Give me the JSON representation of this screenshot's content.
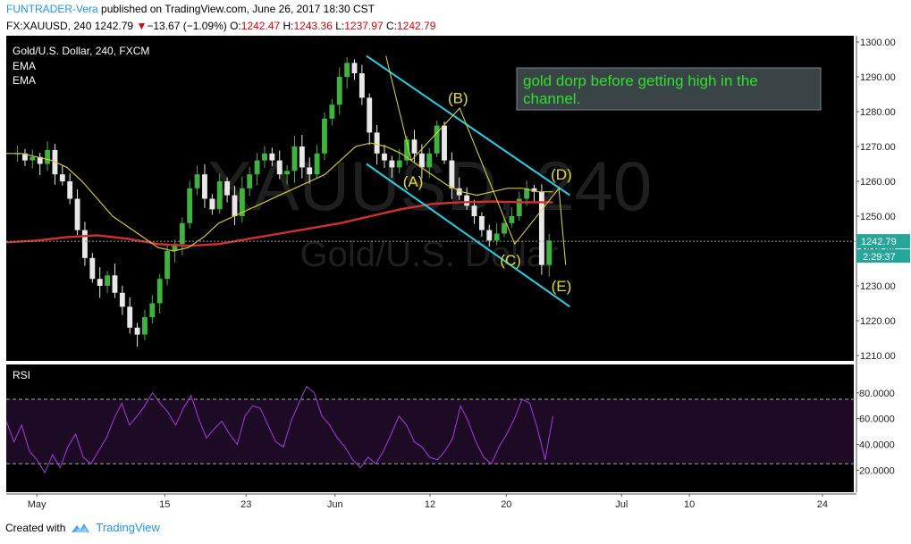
{
  "header": {
    "author": "FUNTRADER-Vera",
    "published": " published on TradingView.com, June 26, 2017 18:30 CST",
    "symbol": "FX:XAUUSD, 240",
    "last": "1242.79",
    "change_arrow": "▼",
    "change": "−13.67 (−1.09%)",
    "o_label": "O:",
    "o": "1242.47",
    "h_label": "H:",
    "h": "1243.36",
    "l_label": "L:",
    "l": "1237.97",
    "c_label": "C:",
    "c": "1242.79"
  },
  "footer": {
    "created_with": "Created with",
    "brand": "TradingView"
  },
  "colors": {
    "pane_bg": "#000000",
    "rsi_bg": "#1d0a24",
    "up": "#3fb23f",
    "down": "#e8e8e8",
    "ema_fast": "#d6c531",
    "ema_slow": "#d42f2f",
    "channel": "#21d0e6",
    "wave": "#e3dc36",
    "rsi_line": "#a53be0",
    "note_text": "#2ee02e",
    "note_bg": "#3a4446"
  },
  "chart_data": {
    "type": "candlestick",
    "title": "Gold/U.S. Dollar, 240, FXCM",
    "indicators": [
      "EMA",
      "EMA"
    ],
    "watermark": [
      "XAUUSD, 240",
      "Gold/U.S. Dollar"
    ],
    "price_axis": {
      "ticks": [
        "1300.00",
        "1290.00",
        "1280.00",
        "1270.00",
        "1260.00",
        "1250.00",
        "1240.00",
        "1230.00",
        "1220.00",
        "1210.00"
      ],
      "ylim": [
        1210,
        1300
      ]
    },
    "last_price_label": "1242.79",
    "countdown_label": "2:29:37",
    "time_axis": [
      "May",
      "15",
      "23",
      "Jun",
      "12",
      "20",
      "Jul",
      "10",
      "24"
    ],
    "close_path": [
      1268,
      1268,
      1266,
      1267,
      1265,
      1269,
      1262,
      1260,
      1255,
      1246,
      1238,
      1232,
      1230,
      1233,
      1228,
      1224,
      1218,
      1216,
      1221,
      1225,
      1232,
      1240,
      1242,
      1248,
      1258,
      1262,
      1255,
      1252,
      1260,
      1256,
      1250,
      1258,
      1262,
      1266,
      1268,
      1266,
      1262,
      1263,
      1270,
      1264,
      1262,
      1268,
      1278,
      1282,
      1290,
      1294,
      1291,
      1284,
      1274,
      1268,
      1266,
      1264,
      1266,
      1272,
      1268,
      1264,
      1268,
      1276,
      1266,
      1258,
      1256,
      1253,
      1250,
      1246,
      1243,
      1245,
      1248,
      1250,
      1255,
      1258,
      1257,
      1236,
      1243
    ],
    "ema_fast_path": [
      1268,
      1268,
      1267,
      1266,
      1264,
      1260,
      1255,
      1250,
      1247,
      1244,
      1241,
      1240,
      1241,
      1244,
      1248,
      1250,
      1252,
      1254,
      1256,
      1258,
      1260,
      1262,
      1266,
      1270,
      1271,
      1270,
      1268,
      1265,
      1262,
      1259,
      1257,
      1256,
      1257,
      1258,
      1258,
      1257,
      1257
    ],
    "ema_slow_path": [
      1242.5,
      1243,
      1244,
      1244.5,
      1243.5,
      1242,
      1241.5,
      1242,
      1243.5,
      1245,
      1246.5,
      1248,
      1250,
      1252,
      1253.5,
      1254,
      1254.2,
      1254,
      1254
    ],
    "annotations": {
      "note": "gold  dorp before getting high in the channel.",
      "waves": [
        "(A)",
        "(B)",
        "(C)",
        "(D)",
        "(E)"
      ]
    },
    "channel": {
      "upper": [
        [
          0.425,
          1296
        ],
        [
          0.665,
          1256
        ]
      ],
      "lower": [
        [
          0.425,
          1265
        ],
        [
          0.665,
          1224
        ]
      ]
    },
    "wave_points": [
      1296,
      1266,
      1281,
      1242,
      1258,
      1236
    ],
    "rsi": {
      "label": "RSI",
      "ticks": [
        "80.0000",
        "60.0000",
        "40.0000",
        "20.0000"
      ],
      "ylim": [
        5,
        100
      ],
      "bands": [
        75,
        25
      ],
      "values": [
        58,
        42,
        55,
        35,
        28,
        18,
        32,
        22,
        38,
        48,
        30,
        25,
        35,
        45,
        60,
        72,
        55,
        62,
        70,
        80,
        72,
        65,
        55,
        68,
        78,
        60,
        45,
        52,
        58,
        48,
        40,
        62,
        70,
        68,
        55,
        42,
        38,
        58,
        72,
        85,
        80,
        62,
        55,
        45,
        38,
        28,
        22,
        30,
        25,
        35,
        48,
        62,
        55,
        42,
        38,
        30,
        28,
        35,
        45,
        70,
        58,
        42,
        30,
        25,
        38,
        48,
        60,
        75,
        72,
        52,
        28,
        62
      ]
    }
  }
}
